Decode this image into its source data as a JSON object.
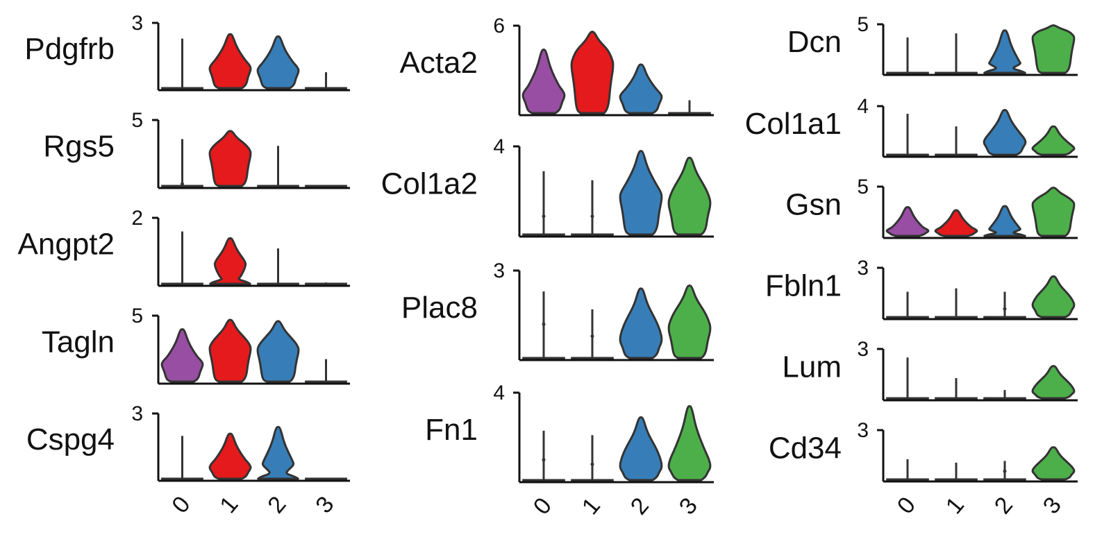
{
  "chart_data": {
    "type": "violin",
    "clusters": [
      "0",
      "1",
      "2",
      "3"
    ],
    "colors": {
      "0": "#984ea3",
      "1": "#e41a1c",
      "2": "#377eb8",
      "3": "#4daf4a"
    },
    "columns": [
      {
        "panels": [
          {
            "gene": "Pdgfrb",
            "ymax_label": "3",
            "ymax": 3,
            "violins": [
              {
                "cluster": "0",
                "max": 2.3,
                "med": 0,
                "q3": 0,
                "filled": false
              },
              {
                "cluster": "1",
                "max": 2.5,
                "med": 0.9,
                "q3": 1.3,
                "filled": true
              },
              {
                "cluster": "2",
                "max": 2.4,
                "med": 0.8,
                "q3": 1.2,
                "filled": true
              },
              {
                "cluster": "3",
                "max": 0.8,
                "med": 0,
                "q3": 0,
                "filled": false
              }
            ]
          },
          {
            "gene": "Rgs5",
            "ymax_label": "5",
            "ymax": 5,
            "violins": [
              {
                "cluster": "0",
                "max": 3.6,
                "med": 0.3,
                "q3": 0.6,
                "filled": false
              },
              {
                "cluster": "1",
                "max": 4.2,
                "med": 2.5,
                "q3": 3.2,
                "filled": true
              },
              {
                "cluster": "2",
                "max": 3.1,
                "med": 0,
                "q3": 0,
                "filled": false
              },
              {
                "cluster": "3",
                "max": 0.1,
                "med": 0,
                "q3": 0,
                "filled": false
              }
            ]
          },
          {
            "gene": "Angpt2",
            "ymax_label": "2",
            "ymax": 2,
            "violins": [
              {
                "cluster": "0",
                "max": 1.6,
                "med": 0,
                "q3": 0,
                "filled": false
              },
              {
                "cluster": "1",
                "max": 1.4,
                "med": 0.1,
                "q3": 0.7,
                "filled": true
              },
              {
                "cluster": "2",
                "max": 1.1,
                "med": 0,
                "q3": 0,
                "filled": false
              },
              {
                "cluster": "3",
                "max": 0.1,
                "med": 0,
                "q3": 0,
                "filled": false
              }
            ]
          },
          {
            "gene": "Tagln",
            "ymax_label": "5",
            "ymax": 5,
            "violins": [
              {
                "cluster": "0",
                "max": 4.0,
                "med": 1.3,
                "q3": 1.9,
                "filled": true
              },
              {
                "cluster": "1",
                "max": 4.7,
                "med": 2.5,
                "q3": 3.3,
                "filled": true
              },
              {
                "cluster": "2",
                "max": 4.6,
                "med": 2.4,
                "q3": 3.2,
                "filled": true
              },
              {
                "cluster": "3",
                "max": 1.8,
                "med": 0,
                "q3": 0,
                "filled": false
              }
            ]
          },
          {
            "gene": "Cspg4",
            "ymax_label": "3",
            "ymax": 3,
            "violins": [
              {
                "cluster": "0",
                "max": 2.0,
                "med": 0,
                "q3": 0,
                "filled": false
              },
              {
                "cluster": "1",
                "max": 2.1,
                "med": 0.5,
                "q3": 0.9,
                "filled": true
              },
              {
                "cluster": "2",
                "max": 2.4,
                "med": 0.3,
                "q3": 0.8,
                "filled": true
              },
              {
                "cluster": "3",
                "max": 0.1,
                "med": 0,
                "q3": 0,
                "filled": false
              }
            ]
          }
        ]
      },
      {
        "panels": [
          {
            "gene": "Acta2",
            "ymax_label": "6",
            "ymax": 6,
            "violins": [
              {
                "cluster": "0",
                "max": 4.4,
                "med": 1.2,
                "q3": 1.9,
                "filled": true
              },
              {
                "cluster": "1",
                "max": 5.6,
                "med": 3.3,
                "q3": 4.4,
                "filled": true
              },
              {
                "cluster": "2",
                "max": 3.4,
                "med": 1.1,
                "q3": 1.7,
                "filled": true
              },
              {
                "cluster": "3",
                "max": 1.0,
                "med": 0,
                "q3": 0,
                "filled": false
              }
            ]
          },
          {
            "gene": "Col1a2",
            "ymax_label": "4",
            "ymax": 4,
            "violins": [
              {
                "cluster": "0",
                "max": 2.9,
                "med": 0.9,
                "q3": 0.9,
                "filled": false
              },
              {
                "cluster": "1",
                "max": 2.5,
                "med": 0.9,
                "q3": 0.9,
                "filled": false
              },
              {
                "cluster": "2",
                "max": 3.8,
                "med": 1.7,
                "q3": 2.3,
                "filled": true
              },
              {
                "cluster": "3",
                "max": 3.5,
                "med": 1.4,
                "q3": 2.2,
                "filled": true
              }
            ]
          },
          {
            "gene": "Plac8",
            "ymax_label": "3",
            "ymax": 3,
            "violins": [
              {
                "cluster": "0",
                "max": 2.3,
                "med": 1.2,
                "q3": 1.2,
                "filled": false
              },
              {
                "cluster": "1",
                "max": 1.7,
                "med": 0.8,
                "q3": 0.8,
                "filled": false
              },
              {
                "cluster": "2",
                "max": 2.4,
                "med": 0.6,
                "q3": 1.3,
                "filled": true
              },
              {
                "cluster": "3",
                "max": 2.5,
                "med": 1.0,
                "q3": 1.6,
                "filled": true
              }
            ]
          },
          {
            "gene": "Fn1",
            "ymax_label": "4",
            "ymax": 4,
            "violins": [
              {
                "cluster": "0",
                "max": 2.3,
                "med": 1.0,
                "q3": 1.0,
                "filled": false
              },
              {
                "cluster": "1",
                "max": 2.1,
                "med": 0.8,
                "q3": 0.8,
                "filled": false
              },
              {
                "cluster": "2",
                "max": 2.9,
                "med": 0.6,
                "q3": 1.5,
                "filled": true
              },
              {
                "cluster": "3",
                "max": 3.4,
                "med": 0.6,
                "q3": 1.4,
                "filled": true
              }
            ]
          }
        ]
      },
      {
        "panels": [
          {
            "gene": "Dcn",
            "ymax_label": "5",
            "ymax": 5,
            "violins": [
              {
                "cluster": "0",
                "max": 3.7,
                "med": 0,
                "q3": 0,
                "filled": false
              },
              {
                "cluster": "1",
                "max": 4.1,
                "med": 0,
                "q3": 0,
                "filled": false
              },
              {
                "cluster": "2",
                "max": 4.4,
                "med": 0.3,
                "q3": 1.1,
                "filled": true
              },
              {
                "cluster": "3",
                "max": 4.9,
                "med": 3.6,
                "q3": 4.3,
                "filled": true
              }
            ]
          },
          {
            "gene": "Col1a1",
            "ymax_label": "4",
            "ymax": 4,
            "violins": [
              {
                "cluster": "0",
                "max": 3.4,
                "med": 0,
                "q3": 0,
                "filled": false
              },
              {
                "cluster": "1",
                "max": 2.4,
                "med": 0,
                "q3": 0,
                "filled": false
              },
              {
                "cluster": "2",
                "max": 3.7,
                "med": 1.0,
                "q3": 1.8,
                "filled": true
              },
              {
                "cluster": "3",
                "max": 2.4,
                "med": 0.5,
                "q3": 1.0,
                "filled": true
              }
            ]
          },
          {
            "gene": "Gsn",
            "ymax_label": "5",
            "ymax": 5,
            "violins": [
              {
                "cluster": "0",
                "max": 3.0,
                "med": 0.5,
                "q3": 0.9,
                "filled": true
              },
              {
                "cluster": "1",
                "max": 2.7,
                "med": 0.5,
                "q3": 0.9,
                "filled": true
              },
              {
                "cluster": "2",
                "max": 3.1,
                "med": 0.2,
                "q3": 0.8,
                "filled": true
              },
              {
                "cluster": "3",
                "max": 4.9,
                "med": 3.2,
                "q3": 3.9,
                "filled": true
              }
            ]
          },
          {
            "gene": "Fbln1",
            "ymax_label": "3",
            "ymax": 3,
            "violins": [
              {
                "cluster": "0",
                "max": 1.6,
                "med": 0,
                "q3": 0,
                "filled": false
              },
              {
                "cluster": "1",
                "max": 1.8,
                "med": 0,
                "q3": 0,
                "filled": false
              },
              {
                "cluster": "2",
                "max": 1.6,
                "med": 0.6,
                "q3": 0.6,
                "filled": false
              },
              {
                "cluster": "3",
                "max": 2.5,
                "med": 0.7,
                "q3": 1.4,
                "filled": true
              }
            ]
          },
          {
            "gene": "Lum",
            "ymax_label": "3",
            "ymax": 3,
            "violins": [
              {
                "cluster": "0",
                "max": 2.5,
                "med": 0,
                "q3": 0,
                "filled": false
              },
              {
                "cluster": "1",
                "max": 1.3,
                "med": 0,
                "q3": 0,
                "filled": false
              },
              {
                "cluster": "2",
                "max": 0.6,
                "med": 0,
                "q3": 0,
                "filled": false
              },
              {
                "cluster": "3",
                "max": 2.0,
                "med": 0.4,
                "q3": 1.0,
                "filled": true
              }
            ]
          },
          {
            "gene": "Cd34",
            "ymax_label": "3",
            "ymax": 3,
            "violins": [
              {
                "cluster": "0",
                "max": 1.3,
                "med": 0,
                "q3": 0,
                "filled": false
              },
              {
                "cluster": "1",
                "max": 1.1,
                "med": 0,
                "q3": 0,
                "filled": false
              },
              {
                "cluster": "2",
                "max": 1.2,
                "med": 0.6,
                "q3": 0.6,
                "filled": false
              },
              {
                "cluster": "3",
                "max": 2.0,
                "med": 0.5,
                "q3": 1.0,
                "filled": true
              }
            ]
          }
        ]
      }
    ]
  }
}
